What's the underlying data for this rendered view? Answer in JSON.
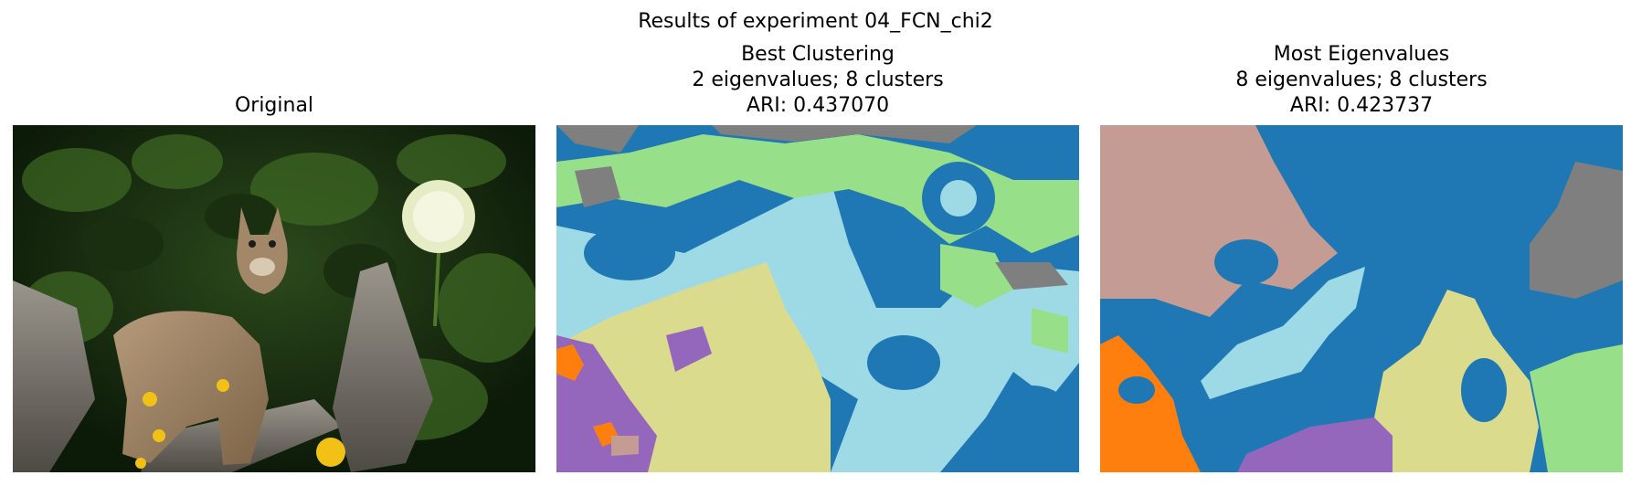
{
  "figure": {
    "suptitle": "Results of experiment 04_FCN_chi2"
  },
  "panels": [
    {
      "id": "original",
      "title_lines": [
        "Original"
      ]
    },
    {
      "id": "best-clustering",
      "title_lines": [
        "Best Clustering",
        "2 eigenvalues; 8 clusters",
        "ARI: 0.437070"
      ]
    },
    {
      "id": "most-eigenvalues",
      "title_lines": [
        "Most Eigenvalues",
        "8 eigenvalues; 8 clusters",
        "ARI: 0.423737"
      ]
    }
  ],
  "cluster_palette": {
    "dark_blue": "#1f77b4",
    "light_blue": "#9edae5",
    "light_green": "#98df8a",
    "gray": "#7f7f7f",
    "khaki": "#dbdb8d",
    "purple": "#9467bd",
    "orange": "#ff7f0e",
    "rosy_brown": "#c49c94"
  }
}
